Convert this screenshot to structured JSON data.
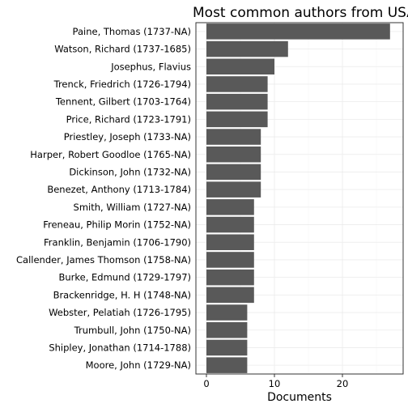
{
  "chart_data": {
    "type": "bar",
    "orientation": "horizontal",
    "title": "Most common authors from USA",
    "xlabel": "Documents",
    "ylabel": "",
    "xlim": [
      0,
      28
    ],
    "xticks": [
      0,
      10,
      20
    ],
    "grid": true,
    "bar_color": "#595959",
    "categories": [
      "Paine, Thomas (1737-NA)",
      "Watson, Richard (1737-1685)",
      "Josephus, Flavius",
      "Trenck, Friedrich (1726-1794)",
      "Tennent, Gilbert (1703-1764)",
      "Price, Richard (1723-1791)",
      "Priestley, Joseph (1733-NA)",
      "Harper, Robert Goodloe (1765-NA)",
      "Dickinson, John (1732-NA)",
      "Benezet, Anthony (1713-1784)",
      "Smith, William (1727-NA)",
      "Freneau, Philip Morin (1752-NA)",
      "Franklin, Benjamin (1706-1790)",
      "Callender, James Thomson (1758-NA)",
      "Burke, Edmund (1729-1797)",
      "Brackenridge, H. H (1748-NA)",
      "Webster, Pelatiah (1726-1795)",
      "Trumbull, John (1750-NA)",
      "Shipley, Jonathan (1714-1788)",
      "Moore, John (1729-NA)"
    ],
    "values": [
      27,
      12,
      10,
      9,
      9,
      9,
      8,
      8,
      8,
      8,
      7,
      7,
      7,
      7,
      7,
      7,
      6,
      6,
      6,
      6
    ]
  }
}
